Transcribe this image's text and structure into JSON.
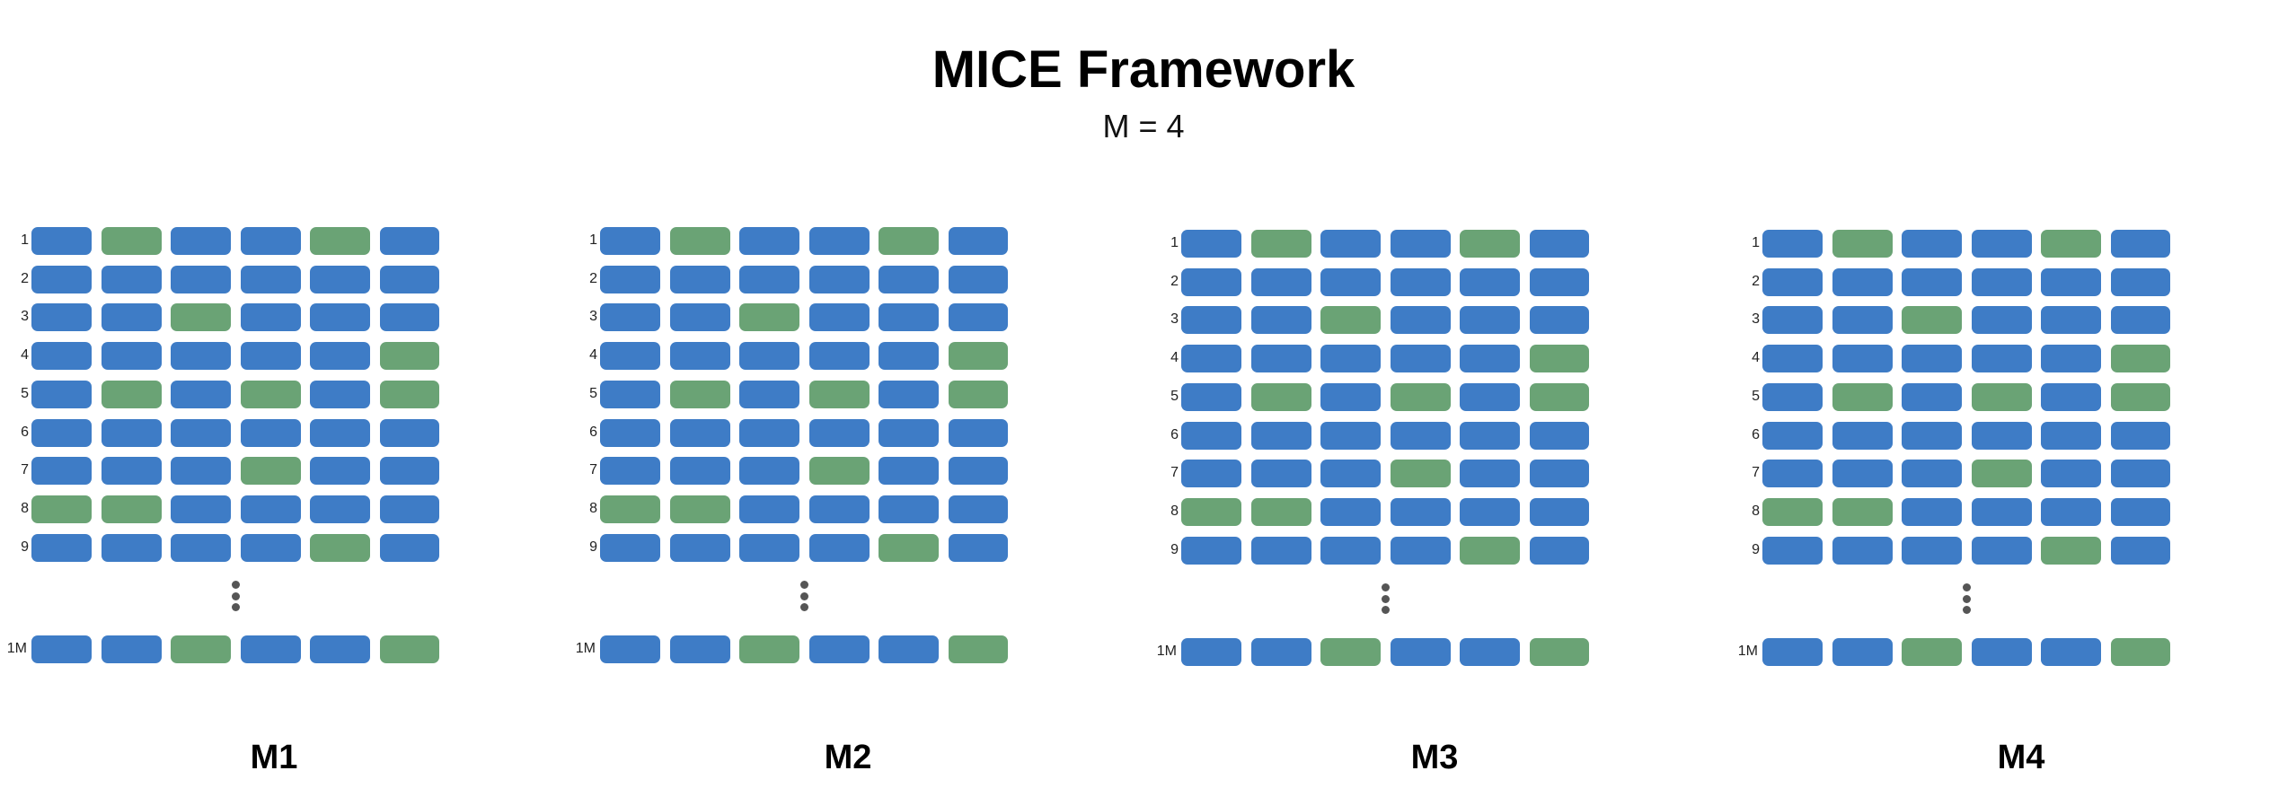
{
  "title": "MICE Framework",
  "subtitle": "M = 4",
  "colors": {
    "observed": "#3e7cc6",
    "imputed": "#6aa375",
    "ellipsis": "#555555"
  },
  "row_labels": [
    "1",
    "2",
    "3",
    "4",
    "5",
    "6",
    "7",
    "8",
    "9",
    "1M"
  ],
  "grid": [
    [
      "B",
      "G",
      "B",
      "B",
      "G",
      "B"
    ],
    [
      "B",
      "B",
      "B",
      "B",
      "B",
      "B"
    ],
    [
      "B",
      "B",
      "G",
      "B",
      "B",
      "B"
    ],
    [
      "B",
      "B",
      "B",
      "B",
      "B",
      "G"
    ],
    [
      "B",
      "G",
      "B",
      "G",
      "B",
      "G"
    ],
    [
      "B",
      "B",
      "B",
      "B",
      "B",
      "B"
    ],
    [
      "B",
      "B",
      "B",
      "G",
      "B",
      "B"
    ],
    [
      "G",
      "G",
      "B",
      "B",
      "B",
      "B"
    ],
    [
      "B",
      "B",
      "B",
      "B",
      "G",
      "B"
    ],
    [
      "B",
      "B",
      "G",
      "B",
      "B",
      "G"
    ]
  ],
  "panels": [
    {
      "label": "M1"
    },
    {
      "label": "M2"
    },
    {
      "label": "M3"
    },
    {
      "label": "M4"
    }
  ]
}
